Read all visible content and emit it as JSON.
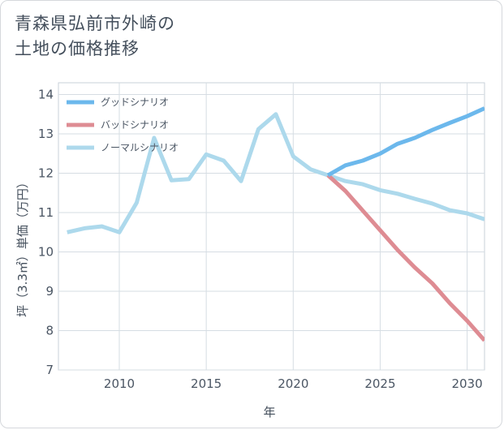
{
  "title_lines": [
    "青森県弘前市外崎の",
    "土地の価格推移"
  ],
  "chart_data": {
    "type": "line",
    "xlabel": "年",
    "ylabel": "坪（3.3㎡）単価（万円）",
    "xlim": [
      2006.5,
      2031
    ],
    "ylim": [
      7,
      14.3
    ],
    "xticks": [
      2010,
      2015,
      2020,
      2025,
      2030
    ],
    "yticks": [
      7,
      8,
      9,
      10,
      11,
      12,
      13,
      14
    ],
    "grid": true,
    "legend_position": "top-left",
    "series": [
      {
        "name": "グッドシナリオ",
        "color": "#6cb8ec",
        "x": [
          2022,
          2023,
          2024,
          2025,
          2026,
          2027,
          2028,
          2029,
          2030,
          2031
        ],
        "y": [
          11.95,
          12.2,
          12.32,
          12.5,
          12.75,
          12.9,
          13.1,
          13.28,
          13.45,
          13.65
        ]
      },
      {
        "name": "バッドシナリオ",
        "color": "#de8c93",
        "x": [
          2022,
          2023,
          2024,
          2025,
          2026,
          2027,
          2028,
          2029,
          2030,
          2031
        ],
        "y": [
          11.95,
          11.55,
          11.05,
          10.55,
          10.05,
          9.6,
          9.2,
          8.7,
          8.25,
          7.75
        ]
      },
      {
        "name": "ノーマルシナリオ",
        "color": "#add9ec",
        "x": [
          2007,
          2008,
          2009,
          2010,
          2011,
          2012,
          2013,
          2014,
          2015,
          2016,
          2017,
          2018,
          2019,
          2020,
          2021,
          2022,
          2023,
          2024,
          2025,
          2026,
          2027,
          2028,
          2029,
          2030,
          2031
        ],
        "y": [
          10.5,
          10.6,
          10.65,
          10.5,
          11.25,
          12.9,
          11.82,
          11.85,
          12.48,
          12.32,
          11.8,
          13.12,
          13.5,
          12.43,
          12.1,
          11.95,
          11.8,
          11.72,
          11.57,
          11.48,
          11.35,
          11.23,
          11.06,
          10.98,
          10.83
        ]
      }
    ]
  }
}
